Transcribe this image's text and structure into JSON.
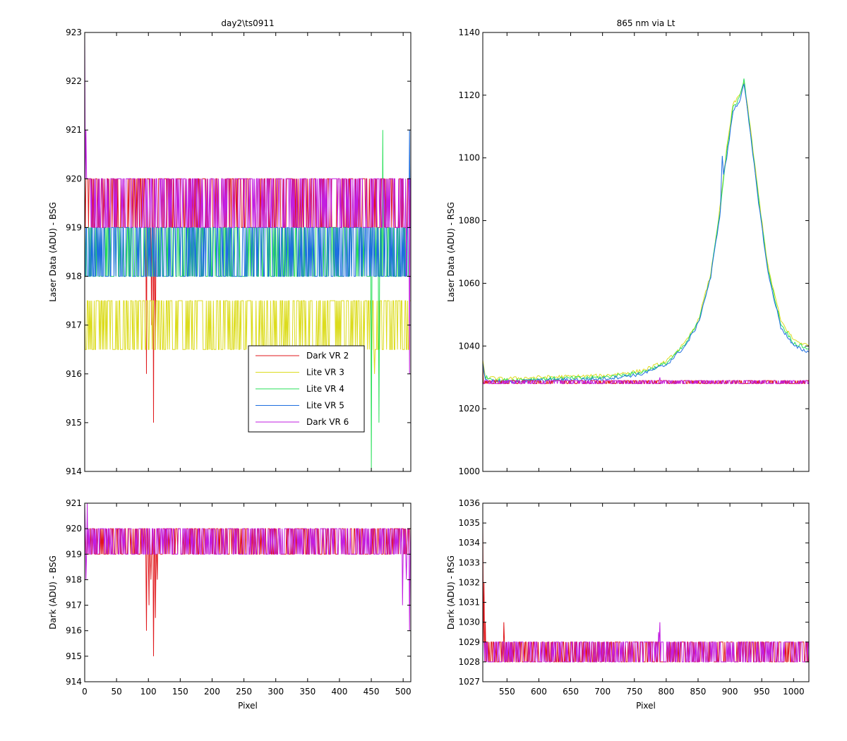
{
  "figure": {
    "background": "#ffffff"
  },
  "legend": {
    "entries": [
      {
        "label": "Dark VR 2",
        "color": "#e0181c"
      },
      {
        "label": "Lite VR 3",
        "color": "#dcdc1e"
      },
      {
        "label": "Lite VR 4",
        "color": "#2ae05a"
      },
      {
        "label": "Lite VR 5",
        "color": "#1e6ee0"
      },
      {
        "label": "Dark VR 6",
        "color": "#c21ee0"
      }
    ],
    "placement": "inside lower-right of top-left panel"
  },
  "chart_data": [
    {
      "id": "tl",
      "type": "line",
      "title": "day2\\ts0911",
      "xlabel": "",
      "ylabel": "Laser Data (ADU) - BSG",
      "xlim": [
        0,
        512
      ],
      "ylim": [
        914,
        923
      ],
      "xticks": [
        0,
        50,
        100,
        150,
        200,
        250,
        300,
        350,
        400,
        450,
        500
      ],
      "show_xtick_labels": false,
      "yticks": [
        914,
        915,
        916,
        917,
        918,
        919,
        920,
        921,
        922,
        923
      ],
      "grid": false,
      "series": [
        {
          "name": "Dark VR 2",
          "color": "#e0181c",
          "base": 919.5,
          "amp": 0.5,
          "x": [
            0,
            512
          ],
          "spikes": [
            [
              97,
              916
            ],
            [
              108,
              915
            ],
            [
              111,
              916.5
            ],
            [
              105,
              917
            ],
            [
              103,
              918.5
            ],
            [
              110,
              918
            ]
          ]
        },
        {
          "name": "Lite VR 3",
          "color": "#dcdc1e",
          "base": 917,
          "amp": 0.5,
          "x": [
            0,
            512
          ],
          "spikes": [
            [
              455,
              916
            ]
          ],
          "start": [
            [
              0,
              921
            ],
            [
              3,
              917
            ]
          ]
        },
        {
          "name": "Lite VR 4",
          "color": "#2ae05a",
          "base": 918.5,
          "amp": 0.5,
          "x": [
            0,
            512
          ],
          "spikes": [
            [
              450,
              914
            ],
            [
              462,
              915
            ],
            [
              468,
              921
            ]
          ]
        },
        {
          "name": "Lite VR 5",
          "color": "#1e6ee0",
          "base": 918.5,
          "amp": 0.5,
          "x": [
            0,
            512
          ],
          "spikes": [
            [
              510,
              921
            ]
          ]
        },
        {
          "name": "Dark VR 6",
          "color": "#c21ee0",
          "base": 919.5,
          "amp": 0.5,
          "x": [
            0,
            512
          ],
          "spikes": [
            [
              0,
              923
            ],
            [
              2,
              921
            ],
            [
              510,
              916
            ],
            [
              505,
              918
            ]
          ]
        }
      ]
    },
    {
      "id": "tr",
      "type": "line",
      "title": "865 nm via Lt",
      "xlabel": "",
      "ylabel": "Laser Data (ADU) - RSG",
      "xlim": [
        512,
        1024
      ],
      "ylim": [
        1000,
        1140
      ],
      "xticks": [
        550,
        600,
        650,
        700,
        750,
        800,
        850,
        900,
        950,
        1000
      ],
      "show_xtick_labels": false,
      "yticks": [
        1000,
        1020,
        1040,
        1060,
        1080,
        1100,
        1120,
        1140
      ],
      "grid": false,
      "series": [
        {
          "name": "Lite VR 3",
          "color": "#dcdc1e",
          "x": [
            512,
            516,
            540,
            600,
            700,
            760,
            800,
            830,
            850,
            870,
            885,
            895,
            905,
            915,
            922,
            930,
            945,
            960,
            980,
            1000,
            1024
          ],
          "y": [
            1035,
            1030,
            1029.5,
            1030,
            1030.5,
            1032,
            1035,
            1041,
            1048,
            1063,
            1085,
            1103,
            1117,
            1120,
            1124,
            1113,
            1088,
            1065,
            1048,
            1042,
            1040
          ]
        },
        {
          "name": "Lite VR 4",
          "color": "#2ae05a",
          "x": [
            512,
            516,
            540,
            600,
            700,
            760,
            800,
            830,
            850,
            870,
            885,
            895,
            905,
            915,
            922,
            930,
            945,
            960,
            980,
            1000,
            1024
          ],
          "y": [
            1034,
            1030,
            1029,
            1029.5,
            1030,
            1031.5,
            1034.5,
            1040.5,
            1047.5,
            1062.5,
            1084,
            1102,
            1116,
            1119,
            1125,
            1112,
            1087,
            1064,
            1047,
            1041,
            1039
          ]
        },
        {
          "name": "Lite VR 5",
          "color": "#1e6ee0",
          "x": [
            512,
            516,
            540,
            600,
            700,
            760,
            800,
            830,
            850,
            870,
            885,
            888,
            890,
            895,
            905,
            915,
            922,
            930,
            945,
            960,
            980,
            1000,
            1024
          ],
          "y": [
            1035,
            1029,
            1028.5,
            1029,
            1029.5,
            1031,
            1034,
            1040,
            1047,
            1062,
            1083,
            1101,
            1095,
            1100,
            1115,
            1118,
            1124,
            1111,
            1086,
            1063,
            1046,
            1040,
            1038
          ]
        },
        {
          "name": "Dark VR 2",
          "color": "#e0181c",
          "base": 1028.5,
          "amp": 0.5,
          "x": [
            512,
            1024
          ],
          "spikes": [
            [
              512,
              1034
            ]
          ]
        },
        {
          "name": "Dark VR 6",
          "color": "#c21ee0",
          "base": 1028.5,
          "amp": 0.5,
          "x": [
            512,
            1024
          ],
          "spikes": [
            [
              790,
              1030
            ]
          ]
        }
      ]
    },
    {
      "id": "bl",
      "type": "line",
      "title": "",
      "xlabel": "Pixel",
      "ylabel": "Dark (ADU) - BSG",
      "xlim": [
        0,
        512
      ],
      "ylim": [
        914,
        921
      ],
      "xticks": [
        0,
        50,
        100,
        150,
        200,
        250,
        300,
        350,
        400,
        450,
        500
      ],
      "show_xtick_labels": true,
      "yticks": [
        914,
        915,
        916,
        917,
        918,
        919,
        920,
        921
      ],
      "grid": false,
      "series": [
        {
          "name": "Dark VR 2",
          "color": "#e0181c",
          "base": 919.5,
          "amp": 0.5,
          "x": [
            0,
            512
          ],
          "spikes": [
            [
              97,
              916
            ],
            [
              101,
              917
            ],
            [
              104,
              918
            ],
            [
              108,
              915
            ],
            [
              111,
              916.5
            ],
            [
              114,
              918
            ]
          ]
        },
        {
          "name": "Dark VR 6",
          "color": "#c21ee0",
          "base": 919.5,
          "amp": 0.5,
          "x": [
            0,
            512
          ],
          "spikes": [
            [
              0,
              921
            ],
            [
              2,
              918
            ],
            [
              4,
              921
            ],
            [
              499,
              917
            ],
            [
              505,
              918
            ],
            [
              510,
              916
            ]
          ]
        }
      ]
    },
    {
      "id": "br",
      "type": "line",
      "title": "",
      "xlabel": "Pixel",
      "ylabel": "Dark (ADU) - RSG",
      "xlim": [
        512,
        1024
      ],
      "ylim": [
        1027,
        1036
      ],
      "xticks": [
        550,
        600,
        650,
        700,
        750,
        800,
        850,
        900,
        950,
        1000
      ],
      "show_xtick_labels": true,
      "yticks": [
        1027,
        1028,
        1029,
        1030,
        1031,
        1032,
        1033,
        1034,
        1035,
        1036
      ],
      "grid": false,
      "series": [
        {
          "name": "Dark VR 2",
          "color": "#e0181c",
          "base": 1028.5,
          "amp": 0.5,
          "x": [
            512,
            1024
          ],
          "spikes": [
            [
              512,
              1035
            ],
            [
              514,
              1032
            ],
            [
              516,
              1030
            ],
            [
              545,
              1030
            ]
          ]
        },
        {
          "name": "Dark VR 6",
          "color": "#c21ee0",
          "base": 1028.5,
          "amp": 0.5,
          "x": [
            512,
            1024
          ],
          "spikes": [
            [
              790,
              1030
            ],
            [
              788,
              1029.5
            ]
          ]
        }
      ]
    }
  ]
}
